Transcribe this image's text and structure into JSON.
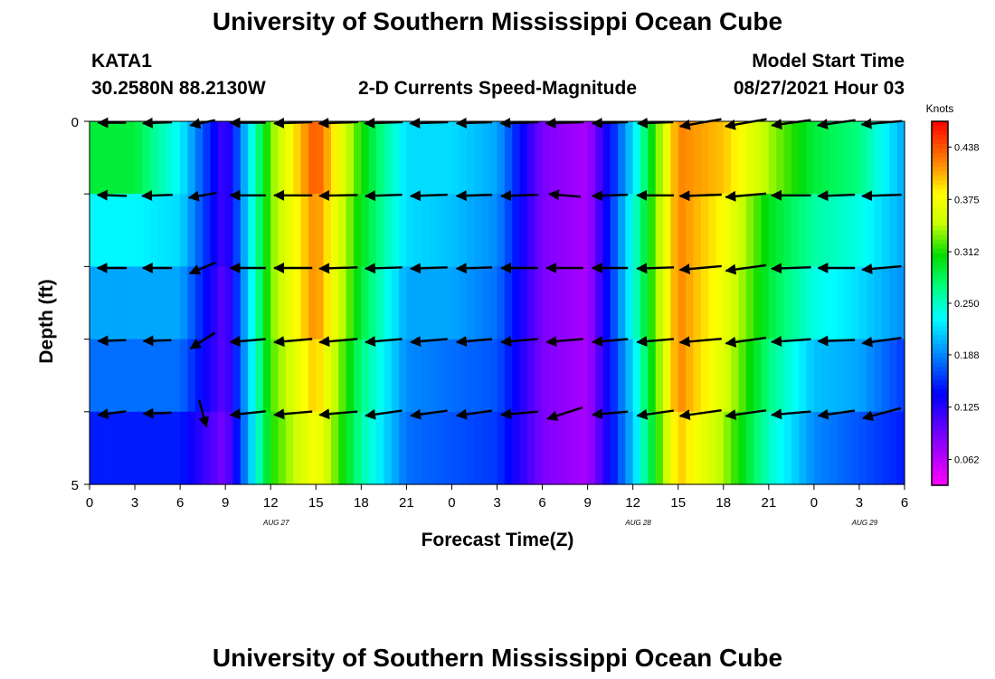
{
  "page": {
    "title_top": "University of Southern Mississippi Ocean Cube",
    "title_bottom": "University of Southern Mississippi Ocean Cube",
    "station_id": "KATA1",
    "station_coords": "30.2580N  88.2130W",
    "chart_title": "2-D Currents Speed-Magnitude",
    "model_start_label": "Model Start Time",
    "model_start_value": "08/27/2021 Hour 03"
  },
  "chart_data": {
    "type": "heatmap",
    "title": "2-D Currents Speed-Magnitude",
    "xlabel": "Forecast Time(Z)",
    "ylabel": "Depth (ft)",
    "x_hours": [
      0,
      3,
      6,
      9,
      12,
      15,
      18,
      21,
      24,
      27,
      30,
      33,
      36,
      39,
      42,
      45,
      48,
      51,
      54
    ],
    "x_tick_labels": [
      "0",
      "3",
      "6",
      "9",
      "12",
      "15",
      "18",
      "21",
      "0",
      "3",
      "6",
      "9",
      "12",
      "15",
      "18",
      "21",
      "0",
      "3",
      "6"
    ],
    "date_labels": [
      {
        "label": "AUG 27",
        "hour": 12
      },
      {
        "label": "AUG 28",
        "hour": 36
      },
      {
        "label": "AUG 29",
        "hour": 51
      }
    ],
    "y_tick_labels": [
      "0",
      "5"
    ],
    "ylim": [
      0,
      5
    ],
    "xlim": [
      0,
      54
    ],
    "colorbar": {
      "title": "Knots",
      "ticks": [
        "0.438",
        "0.375",
        "0.312",
        "0.250",
        "0.188",
        "0.125",
        "0.062"
      ],
      "range": [
        0.031,
        0.469
      ]
    },
    "depth_layers": [
      0.5,
      1.5,
      2.5,
      3.5,
      4.5
    ],
    "speed_knots": [
      [
        0.29,
        0.29,
        0.23,
        0.11,
        0.33,
        0.44,
        0.31,
        0.22,
        0.22,
        0.2,
        0.09,
        0.07,
        0.22,
        0.42,
        0.4,
        0.34,
        0.29,
        0.27,
        0.2
      ],
      [
        0.23,
        0.23,
        0.22,
        0.11,
        0.33,
        0.42,
        0.3,
        0.22,
        0.21,
        0.19,
        0.09,
        0.07,
        0.24,
        0.42,
        0.38,
        0.3,
        0.26,
        0.24,
        0.2
      ],
      [
        0.2,
        0.2,
        0.2,
        0.1,
        0.33,
        0.42,
        0.29,
        0.2,
        0.2,
        0.18,
        0.09,
        0.07,
        0.24,
        0.42,
        0.37,
        0.29,
        0.24,
        0.22,
        0.19
      ],
      [
        0.18,
        0.18,
        0.18,
        0.1,
        0.32,
        0.4,
        0.27,
        0.19,
        0.18,
        0.17,
        0.09,
        0.07,
        0.22,
        0.42,
        0.36,
        0.27,
        0.21,
        0.2,
        0.16
      ],
      [
        0.15,
        0.15,
        0.15,
        0.09,
        0.31,
        0.38,
        0.26,
        0.18,
        0.17,
        0.16,
        0.09,
        0.07,
        0.21,
        0.4,
        0.34,
        0.25,
        0.19,
        0.17,
        0.15
      ]
    ],
    "arrow_depths": [
      0,
      1,
      2,
      3,
      4
    ],
    "arrow_hours": [
      1.5,
      4.5,
      7.5,
      10.5,
      13.5,
      16.5,
      19.5,
      22.5,
      25.5,
      28.5,
      31.5,
      34.5,
      37.5,
      40.5,
      43.5,
      46.5,
      49.5,
      52.5
    ],
    "arrow_direction_deg": [
      [
        270,
        268,
        258,
        270,
        268,
        268,
        268,
        268,
        268,
        268,
        268,
        268,
        268,
        260,
        260,
        262,
        262,
        265
      ],
      [
        272,
        268,
        260,
        270,
        270,
        269,
        268,
        268,
        268,
        268,
        275,
        268,
        270,
        268,
        265,
        270,
        268,
        268
      ],
      [
        270,
        270,
        247,
        270,
        270,
        268,
        268,
        268,
        268,
        270,
        270,
        270,
        268,
        265,
        262,
        268,
        270,
        265
      ],
      [
        268,
        268,
        237,
        265,
        265,
        265,
        265,
        265,
        265,
        265,
        265,
        265,
        265,
        265,
        262,
        266,
        268,
        262
      ],
      [
        262,
        268,
        165,
        264,
        265,
        265,
        262,
        262,
        262,
        265,
        252,
        265,
        262,
        262,
        262,
        265,
        262,
        255
      ]
    ],
    "arrow_speed_knots": [
      [
        0.22,
        0.23,
        0.2,
        0.28,
        0.3,
        0.31,
        0.3,
        0.3,
        0.28,
        0.3,
        0.3,
        0.28,
        0.28,
        0.33,
        0.33,
        0.31,
        0.3,
        0.32
      ],
      [
        0.23,
        0.24,
        0.22,
        0.28,
        0.3,
        0.3,
        0.29,
        0.29,
        0.28,
        0.29,
        0.25,
        0.28,
        0.29,
        0.33,
        0.32,
        0.31,
        0.29,
        0.31
      ],
      [
        0.23,
        0.23,
        0.22,
        0.28,
        0.3,
        0.3,
        0.29,
        0.29,
        0.28,
        0.29,
        0.29,
        0.28,
        0.29,
        0.33,
        0.32,
        0.31,
        0.29,
        0.31
      ],
      [
        0.22,
        0.22,
        0.23,
        0.28,
        0.3,
        0.3,
        0.29,
        0.29,
        0.28,
        0.29,
        0.29,
        0.28,
        0.29,
        0.33,
        0.32,
        0.31,
        0.29,
        0.31
      ],
      [
        0.22,
        0.22,
        0.22,
        0.28,
        0.3,
        0.3,
        0.29,
        0.29,
        0.28,
        0.29,
        0.29,
        0.28,
        0.29,
        0.33,
        0.32,
        0.31,
        0.29,
        0.31
      ]
    ]
  }
}
